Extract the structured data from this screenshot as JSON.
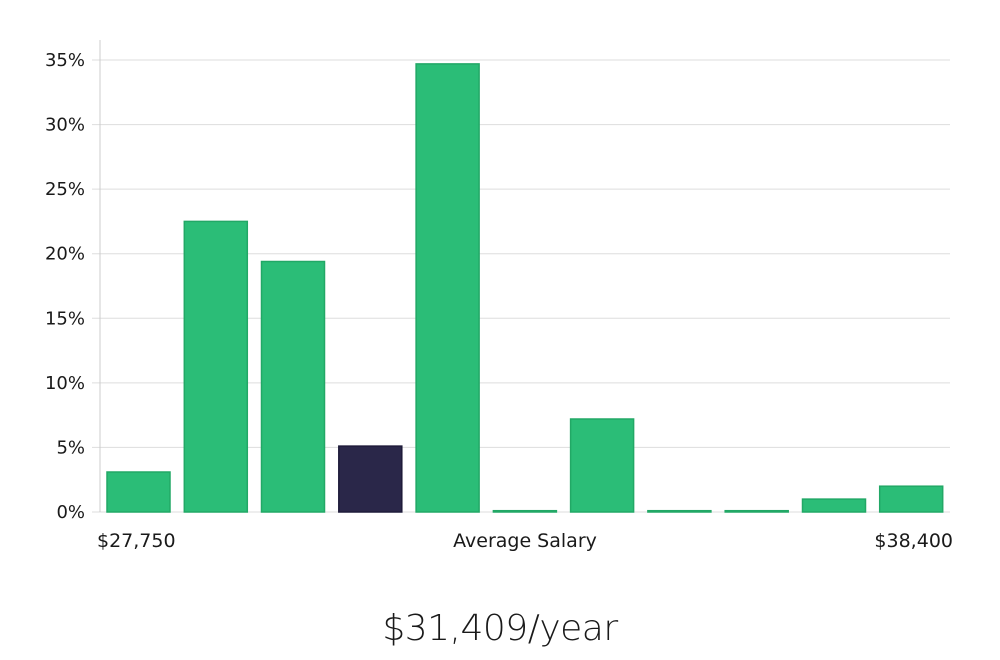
{
  "chart_data": {
    "type": "bar",
    "title": "",
    "xlabel": "Average Salary",
    "ylabel": "",
    "x_min_label": "$27,750",
    "x_max_label": "$38,400",
    "ylim": [
      0,
      36
    ],
    "yticks": [
      0,
      5,
      10,
      15,
      20,
      25,
      30,
      35
    ],
    "ytick_labels": [
      "0%",
      "5%",
      "10%",
      "15%",
      "20%",
      "25%",
      "30%",
      "35%"
    ],
    "values": [
      3.1,
      22.5,
      19.4,
      5.1,
      34.7,
      0.1,
      7.2,
      0.1,
      0.1,
      1.0,
      2.0
    ],
    "highlight_index": 3,
    "colors": {
      "bar": "#2bbd77",
      "highlight": "#2a2749",
      "grid": "#dddddd",
      "axis": "#cccccc"
    }
  },
  "summary": {
    "salary": "$31,409/year"
  }
}
